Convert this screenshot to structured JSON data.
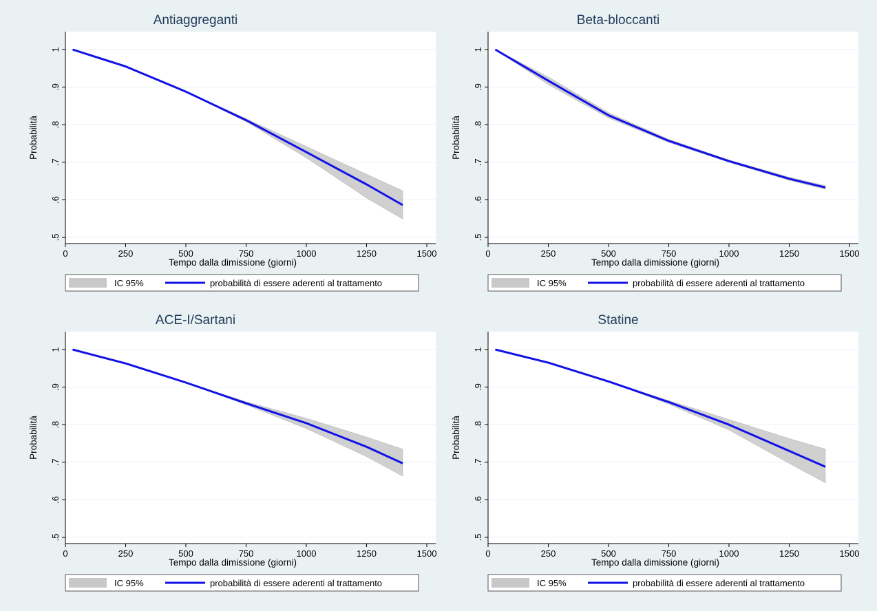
{
  "colors": {
    "background": "#eaf1f3",
    "plot_background": "#ffffff",
    "line": "#1212e6",
    "band": "#c8c8c8",
    "title": "#1f3c5a"
  },
  "chart_data": [
    {
      "type": "line",
      "title": "Antiaggreganti",
      "xlabel": "Tempo dalla dimissione (giorni)",
      "ylabel": "Probabilità",
      "xlim": [
        0,
        1500
      ],
      "ylim": [
        0.5,
        1.0
      ],
      "xticks": [
        "0",
        "250",
        "500",
        "750",
        "1000",
        "1250",
        "1500"
      ],
      "yticks": [
        ".5",
        ".6",
        ".7",
        ".8",
        ".9",
        "1"
      ],
      "grid": true,
      "legend": [
        "IC 95%",
        "probabilità di essere aderenti al trattamento"
      ],
      "legend_position": "bottom",
      "x": [
        30,
        250,
        500,
        750,
        1000,
        1250,
        1400
      ],
      "series": [
        {
          "values": [
            1.0,
            0.955,
            0.888,
            0.812,
            0.727,
            0.641,
            0.586
          ]
        },
        {
          "values": [
            1.0,
            0.955,
            0.888,
            0.816,
            0.742,
            0.668,
            0.624
          ]
        },
        {
          "values": [
            1.0,
            0.955,
            0.888,
            0.808,
            0.712,
            0.605,
            0.549
          ]
        }
      ]
    },
    {
      "type": "line",
      "title": "Beta-bloccanti",
      "xlabel": "Tempo dalla dimissione (giorni)",
      "ylabel": "Probabilità",
      "xlim": [
        0,
        1500
      ],
      "ylim": [
        0.5,
        1.0
      ],
      "xticks": [
        "0",
        "250",
        "500",
        "750",
        "1000",
        "1250",
        "1500"
      ],
      "yticks": [
        ".5",
        ".6",
        ".7",
        ".8",
        ".9",
        "1"
      ],
      "grid": true,
      "legend": [
        "IC 95%",
        "probabilità di essere aderenti al trattamento"
      ],
      "legend_position": "bottom",
      "x": [
        30,
        250,
        500,
        750,
        1000,
        1250,
        1400
      ],
      "series": [
        {
          "values": [
            1.0,
            0.917,
            0.825,
            0.757,
            0.703,
            0.656,
            0.633
          ]
        },
        {
          "values": [
            1.0,
            0.927,
            0.832,
            0.761,
            0.706,
            0.66,
            0.638
          ]
        },
        {
          "values": [
            1.0,
            0.907,
            0.818,
            0.753,
            0.7,
            0.652,
            0.628
          ]
        }
      ]
    },
    {
      "type": "line",
      "title": "ACE-I/Sartani",
      "xlabel": "Tempo dalla dimissione (giorni)",
      "ylabel": "Probabilità",
      "xlim": [
        0,
        1500
      ],
      "ylim": [
        0.5,
        1.0
      ],
      "xticks": [
        "0",
        "250",
        "500",
        "750",
        "1000",
        "1250",
        "1500"
      ],
      "yticks": [
        ".5",
        ".6",
        ".7",
        ".8",
        ".9",
        "1"
      ],
      "grid": true,
      "legend": [
        "IC 95%",
        "probabilità di essere aderenti al trattamento"
      ],
      "legend_position": "bottom",
      "x": [
        30,
        250,
        500,
        750,
        1000,
        1250,
        1400
      ],
      "series": [
        {
          "values": [
            1.0,
            0.963,
            0.912,
            0.857,
            0.804,
            0.741,
            0.697
          ]
        },
        {
          "values": [
            1.0,
            0.963,
            0.912,
            0.861,
            0.817,
            0.767,
            0.735
          ]
        },
        {
          "values": [
            1.0,
            0.963,
            0.912,
            0.853,
            0.79,
            0.715,
            0.663
          ]
        }
      ]
    },
    {
      "type": "line",
      "title": "Statine",
      "xlabel": "Tempo dalla dimissione (giorni)",
      "ylabel": "Probabilità",
      "xlim": [
        0,
        1500
      ],
      "ylim": [
        0.5,
        1.0
      ],
      "xticks": [
        "0",
        "250",
        "500",
        "750",
        "1000",
        "1250",
        "1500"
      ],
      "yticks": [
        ".5",
        ".6",
        ".7",
        ".8",
        ".9",
        "1"
      ],
      "grid": true,
      "legend": [
        "IC 95%",
        "probabilità di essere aderenti al trattamento"
      ],
      "legend_position": "bottom",
      "x": [
        30,
        250,
        500,
        750,
        1000,
        1250,
        1400
      ],
      "series": [
        {
          "values": [
            1.0,
            0.965,
            0.915,
            0.86,
            0.8,
            0.73,
            0.688
          ]
        },
        {
          "values": [
            1.0,
            0.965,
            0.915,
            0.864,
            0.814,
            0.763,
            0.735
          ]
        },
        {
          "values": [
            1.0,
            0.965,
            0.915,
            0.855,
            0.786,
            0.697,
            0.645
          ]
        }
      ]
    }
  ]
}
